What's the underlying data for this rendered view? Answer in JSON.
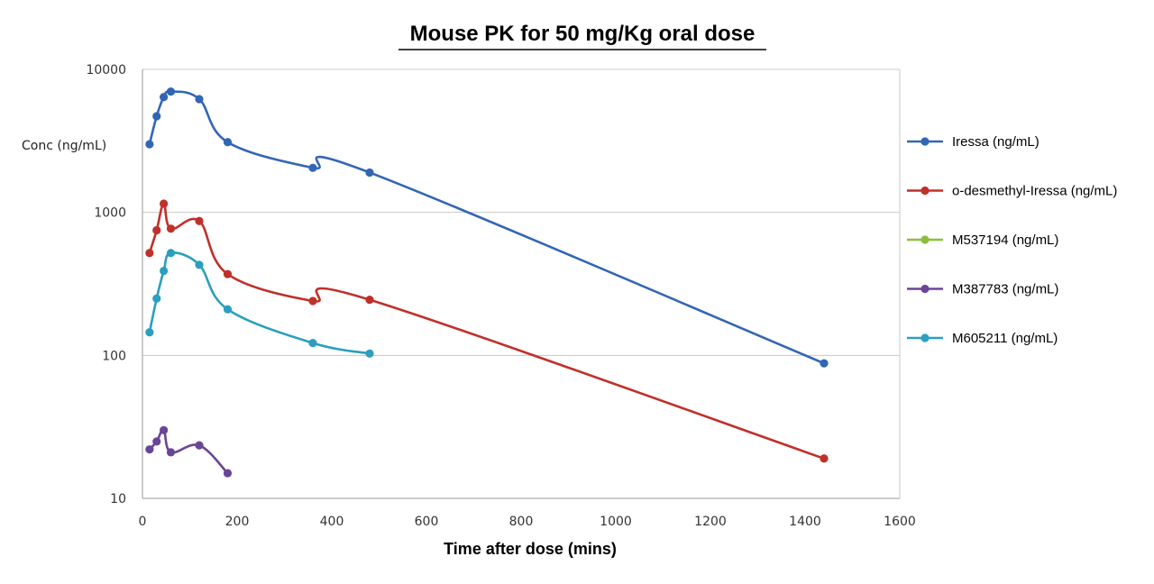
{
  "chart_data": {
    "type": "line",
    "title": "Mouse PK for 50 mg/Kg oral dose",
    "xlabel": "Time after dose (mins)",
    "ylabel": "Conc (ng/mL)",
    "xlim": [
      0,
      1600
    ],
    "ylim": [
      10,
      10000
    ],
    "yscale": "log",
    "xticks": [
      0,
      200,
      400,
      600,
      800,
      1000,
      1200,
      1400,
      1600
    ],
    "yticks": [
      10,
      100,
      1000,
      10000
    ],
    "xtick_labels": [
      "0",
      "200",
      "400",
      "600",
      "800",
      "1000",
      "1200",
      "1400",
      "1600"
    ],
    "ytick_labels": [
      "10",
      "100",
      "1000",
      "10000"
    ],
    "grid": "horizontal",
    "legend_position": "right",
    "series": [
      {
        "name": "Iressa (ng/mL)",
        "color": "#3266b4",
        "x": [
          15,
          30,
          45,
          60,
          120,
          180,
          360,
          480,
          1440
        ],
        "y": [
          3000,
          4700,
          6400,
          7000,
          6200,
          3100,
          2050,
          1900,
          88
        ]
      },
      {
        "name": "o-desmethyl-Iressa (ng/mL)",
        "color": "#c0302a",
        "x": [
          15,
          30,
          45,
          60,
          120,
          180,
          360,
          480,
          1440
        ],
        "y": [
          520,
          750,
          1150,
          770,
          870,
          370,
          240,
          245,
          19
        ]
      },
      {
        "name": "M537194 (ng/mL)",
        "color": "#8cbe3c",
        "x": [],
        "y": []
      },
      {
        "name": "M387783 (ng/mL)",
        "color": "#6a4596",
        "x": [
          15,
          30,
          45,
          60,
          120,
          180
        ],
        "y": [
          22,
          25,
          30,
          21,
          23.5,
          15
        ]
      },
      {
        "name": "M605211 (ng/mL)",
        "color": "#2a9fbf",
        "x": [
          15,
          30,
          45,
          60,
          120,
          180,
          360,
          480
        ],
        "y": [
          145,
          250,
          390,
          520,
          430,
          210,
          122,
          103
        ]
      }
    ]
  }
}
